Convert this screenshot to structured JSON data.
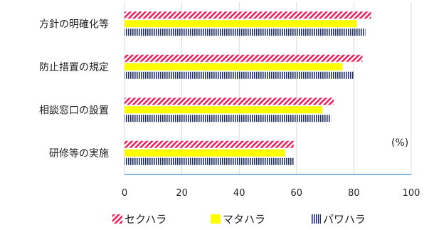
{
  "chart_data": {
    "type": "bar",
    "orientation": "horizontal",
    "categories": [
      "方針の明確化等",
      "防止措置の規定",
      "相談窓口の設置",
      "研修等の実施"
    ],
    "series": [
      {
        "name": "セクハラ",
        "values": [
          86,
          83,
          73,
          59
        ],
        "color": "#e8245c",
        "pattern": "diagonal-stripes"
      },
      {
        "name": "マタハラ",
        "values": [
          81,
          76,
          69,
          56
        ],
        "color": "#ffff00",
        "pattern": "solid"
      },
      {
        "name": "パワハラ",
        "values": [
          84,
          80,
          72,
          59
        ],
        "color": "#1f2f6e",
        "pattern": "vertical-stripes"
      }
    ],
    "xlim": [
      0,
      100
    ],
    "x_ticks": [
      "0",
      "20",
      "40",
      "60",
      "80",
      "100"
    ],
    "unit_label": "(%)",
    "grid": true,
    "legend_position": "bottom"
  }
}
